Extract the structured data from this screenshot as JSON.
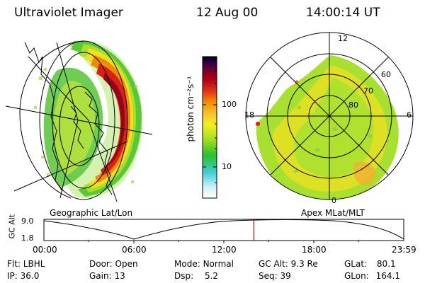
{
  "header": {
    "instrument": "Ultraviolet Imager",
    "date": "12 Aug 00",
    "time": "14:00:14 UT"
  },
  "left_panel": {
    "caption": "Geographic Lat/Lon",
    "projection": "geographic"
  },
  "colorbar": {
    "unit_label": "photon cm⁻²s⁻¹",
    "ticks": [
      "100",
      "10"
    ],
    "scale": "log",
    "colors": [
      "#ffffff",
      "#bfeef5",
      "#3fd0d8",
      "#28c030",
      "#a8e020",
      "#f5f020",
      "#f5c030",
      "#f08c00",
      "#e03018",
      "#b00014",
      "#700030",
      "#2a0050",
      "#000000"
    ]
  },
  "right_panel": {
    "caption": "Apex MLat/MLT",
    "lat_labels": [
      "60",
      "70",
      "80"
    ],
    "mlt_labels": [
      "12",
      "18",
      "6",
      "0"
    ]
  },
  "timeline": {
    "axis_label": "GC Alt",
    "y_ticks": [
      "9.0",
      "1.8"
    ],
    "x_ticks": [
      "00:00",
      "06:00",
      "12:00",
      "18:00",
      "23:59"
    ],
    "current_fraction": 0.5835,
    "marker_color": "#cc0000"
  },
  "status": {
    "flt": {
      "label": "Flt:",
      "value": "LBHL"
    },
    "ip": {
      "label": "IP:",
      "value": "36.0"
    },
    "door": {
      "label": "Door:",
      "value": "Open"
    },
    "gain": {
      "label": "Gain:",
      "value": "13"
    },
    "mode": {
      "label": "Mode:",
      "value": "Normal"
    },
    "dsp": {
      "label": "Dsp:",
      "value": "5.2"
    },
    "gcalt": {
      "label": "GC Alt:",
      "value": "9.3 Re"
    },
    "seq": {
      "label": "Seq:",
      "value": "39"
    },
    "glat": {
      "label": "GLat:",
      "value": "80.1"
    },
    "glon": {
      "label": "GLon:",
      "value": "164.1"
    }
  }
}
